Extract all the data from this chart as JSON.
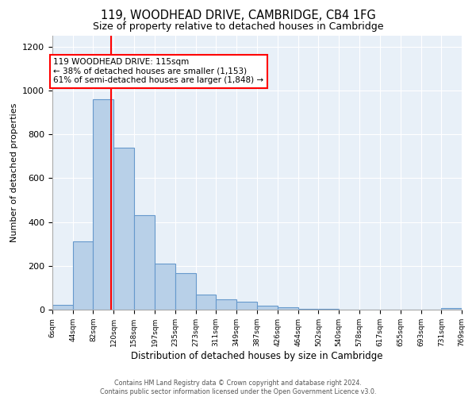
{
  "title": "119, WOODHEAD DRIVE, CAMBRIDGE, CB4 1FG",
  "subtitle": "Size of property relative to detached houses in Cambridge",
  "xlabel": "Distribution of detached houses by size in Cambridge",
  "ylabel": "Number of detached properties",
  "bar_color": "#b8d0e8",
  "bar_edge_color": "#6699cc",
  "annotation_text_line1": "119 WOODHEAD DRIVE: 115sqm",
  "annotation_text_line2": "← 38% of detached houses are smaller (1,153)",
  "annotation_text_line3": "61% of semi-detached houses are larger (1,848) →",
  "footer_line1": "Contains HM Land Registry data © Crown copyright and database right 2024.",
  "footer_line2": "Contains public sector information licensed under the Open Government Licence v3.0.",
  "bin_edges": [
    6,
    44,
    82,
    120,
    158,
    197,
    235,
    273,
    311,
    349,
    387,
    426,
    464,
    502,
    540,
    578,
    617,
    655,
    693,
    731,
    769
  ],
  "bin_labels": [
    "6sqm",
    "44sqm",
    "82sqm",
    "120sqm",
    "158sqm",
    "197sqm",
    "235sqm",
    "273sqm",
    "311sqm",
    "349sqm",
    "387sqm",
    "426sqm",
    "464sqm",
    "502sqm",
    "540sqm",
    "578sqm",
    "617sqm",
    "655sqm",
    "693sqm",
    "731sqm",
    "769sqm"
  ],
  "bar_heights": [
    20,
    310,
    960,
    740,
    430,
    210,
    165,
    70,
    48,
    35,
    18,
    10,
    5,
    2,
    1,
    0,
    0,
    0,
    0,
    8,
    0
  ],
  "ylim": [
    0,
    1250
  ],
  "yticks": [
    0,
    200,
    400,
    600,
    800,
    1000,
    1200
  ],
  "red_line_x": 115,
  "background_color": "#e8f0f8"
}
